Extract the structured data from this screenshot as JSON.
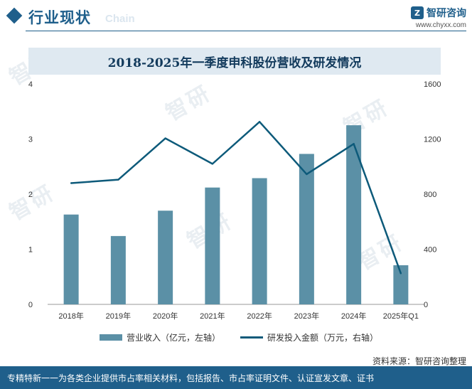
{
  "header": {
    "section_title": "行业现状",
    "section_subtitle": "Chain",
    "brand_name": "智研咨询",
    "brand_url": "www.chyxx.com"
  },
  "colors": {
    "bar": "#5b90a6",
    "line": "#0d5a7a",
    "accent": "#1f5f8b"
  },
  "chart_data": {
    "type": "bar+line",
    "title": "2018-2025年一季度申科股份营收及研发情况",
    "categories": [
      "2018年",
      "2019年",
      "2020年",
      "2021年",
      "2022年",
      "2023年",
      "2024年",
      "2025年Q1"
    ],
    "series": [
      {
        "name": "营业收入（亿元，左轴）",
        "type": "bar",
        "axis": "left",
        "values": [
          1.63,
          1.24,
          1.7,
          2.12,
          2.29,
          2.73,
          3.25,
          0.71
        ]
      },
      {
        "name": "研发投入金额（万元，右轴）",
        "type": "line",
        "axis": "right",
        "values": [
          880,
          905,
          1205,
          1020,
          1325,
          945,
          1165,
          225
        ]
      }
    ],
    "y_left": {
      "min": 0,
      "max": 4,
      "ticks": [
        "0",
        "1",
        "2",
        "3",
        "4"
      ]
    },
    "y_right": {
      "min": 0,
      "max": 1600,
      "ticks": [
        "0",
        "400",
        "800",
        "1200",
        "1600"
      ]
    }
  },
  "source": "资料来源：智研咨询整理",
  "footer": "专精特新一一为各类企业提供市占率相关材料，包括报告、市占率证明文件、认证宣发文章、证书"
}
